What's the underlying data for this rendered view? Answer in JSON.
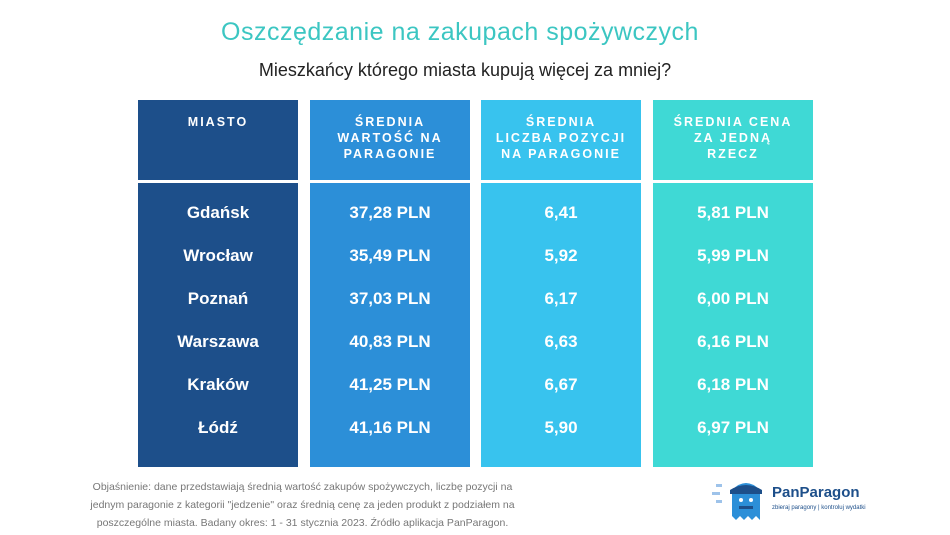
{
  "header": {
    "title": "Oszczędzanie na zakupach spożywczych",
    "subtitle": "Mieszkańcy którego miasta kupują więcej za mniej?"
  },
  "table": {
    "columns": [
      "MIASTO",
      "ŚREDNIA WARTOŚĆ NA PARAGONIE",
      "ŚREDNIA LICZBA POZYCJI NA PARAGONIE",
      "ŚREDNIA CENA ZA JEDNĄ RZECZ"
    ],
    "rows": [
      [
        "Gdańsk",
        "37,28 PLN",
        "6,41",
        "5,81 PLN"
      ],
      [
        "Wrocław",
        "35,49 PLN",
        "5,92",
        "5,99 PLN"
      ],
      [
        "Poznań",
        "37,03 PLN",
        "6,17",
        "6,00 PLN"
      ],
      [
        "Warszawa",
        "40,83 PLN",
        "6,63",
        "6,16 PLN"
      ],
      [
        "Kraków",
        "41,25 PLN",
        "6,67",
        "6,18 PLN"
      ],
      [
        "Łódź",
        "41,16 PLN",
        "5,90",
        "6,97 PLN"
      ]
    ]
  },
  "footnote": "Objaśnienie: dane przedstawiają średnią wartość zakupów spożywczych, liczbę pozycji na jednym paragonie z kategorii \"jedzenie\" oraz średnią cenę za jeden produkt z podziałem na poszczególne miasta. Badany okres: 1 - 31 stycznia 2023. Źródło aplikacja PanParagon.",
  "logo": {
    "name": "PanParagon",
    "tagline": "zbieraj paragony | kontroluj wydatki"
  }
}
